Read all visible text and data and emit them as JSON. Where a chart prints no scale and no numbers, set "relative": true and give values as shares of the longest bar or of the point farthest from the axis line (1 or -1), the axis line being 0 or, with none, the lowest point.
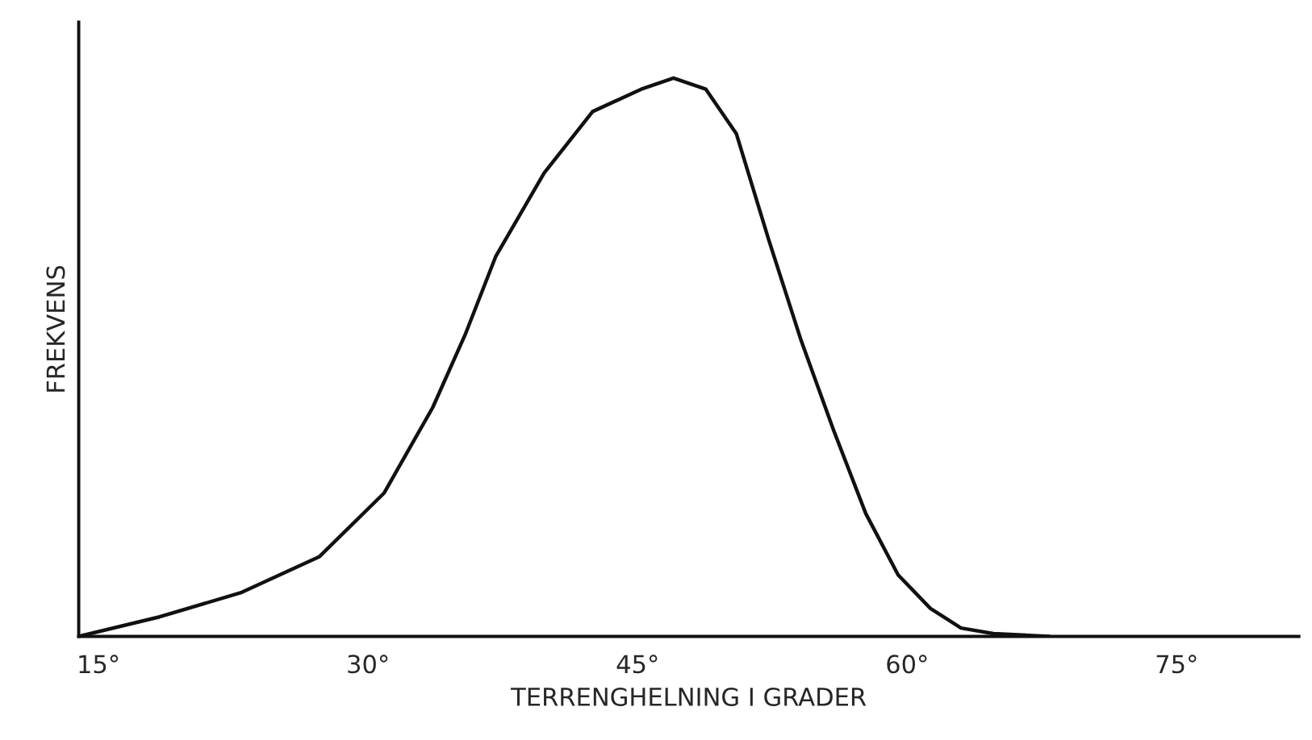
{
  "chart_data": {
    "type": "line",
    "relative": true,
    "xlabel": "TERRENGHELNING I GRADER",
    "ylabel": "FREKVENS",
    "xlim": [
      13.9,
      81.8
    ],
    "xticks": [
      {
        "value": 15,
        "label": "15°"
      },
      {
        "value": 30,
        "label": "30°"
      },
      {
        "value": 45,
        "label": "45°"
      },
      {
        "value": 60,
        "label": "60°"
      },
      {
        "value": 75,
        "label": "75°"
      }
    ],
    "x": [
      13.9,
      18.4,
      22.9,
      27.3,
      30.9,
      33.6,
      35.4,
      37.1,
      39.8,
      42.5,
      45.2,
      47.0,
      48.8,
      50.5,
      52.3,
      54.1,
      55.9,
      57.7,
      59.5,
      61.3,
      63.0,
      64.8,
      67.9
    ],
    "series": [
      {
        "color": "#111111",
        "values": [
          0,
          0.035,
          0.078,
          0.143,
          0.257,
          0.41,
          0.54,
          0.68,
          0.83,
          0.94,
          0.98,
          1,
          0.98,
          0.9,
          0.71,
          0.53,
          0.37,
          0.22,
          0.11,
          0.05,
          0.015,
          0.005,
          0
        ]
      }
    ],
    "marker": "none",
    "line_style": "solid",
    "grid": false,
    "legend": false
  }
}
